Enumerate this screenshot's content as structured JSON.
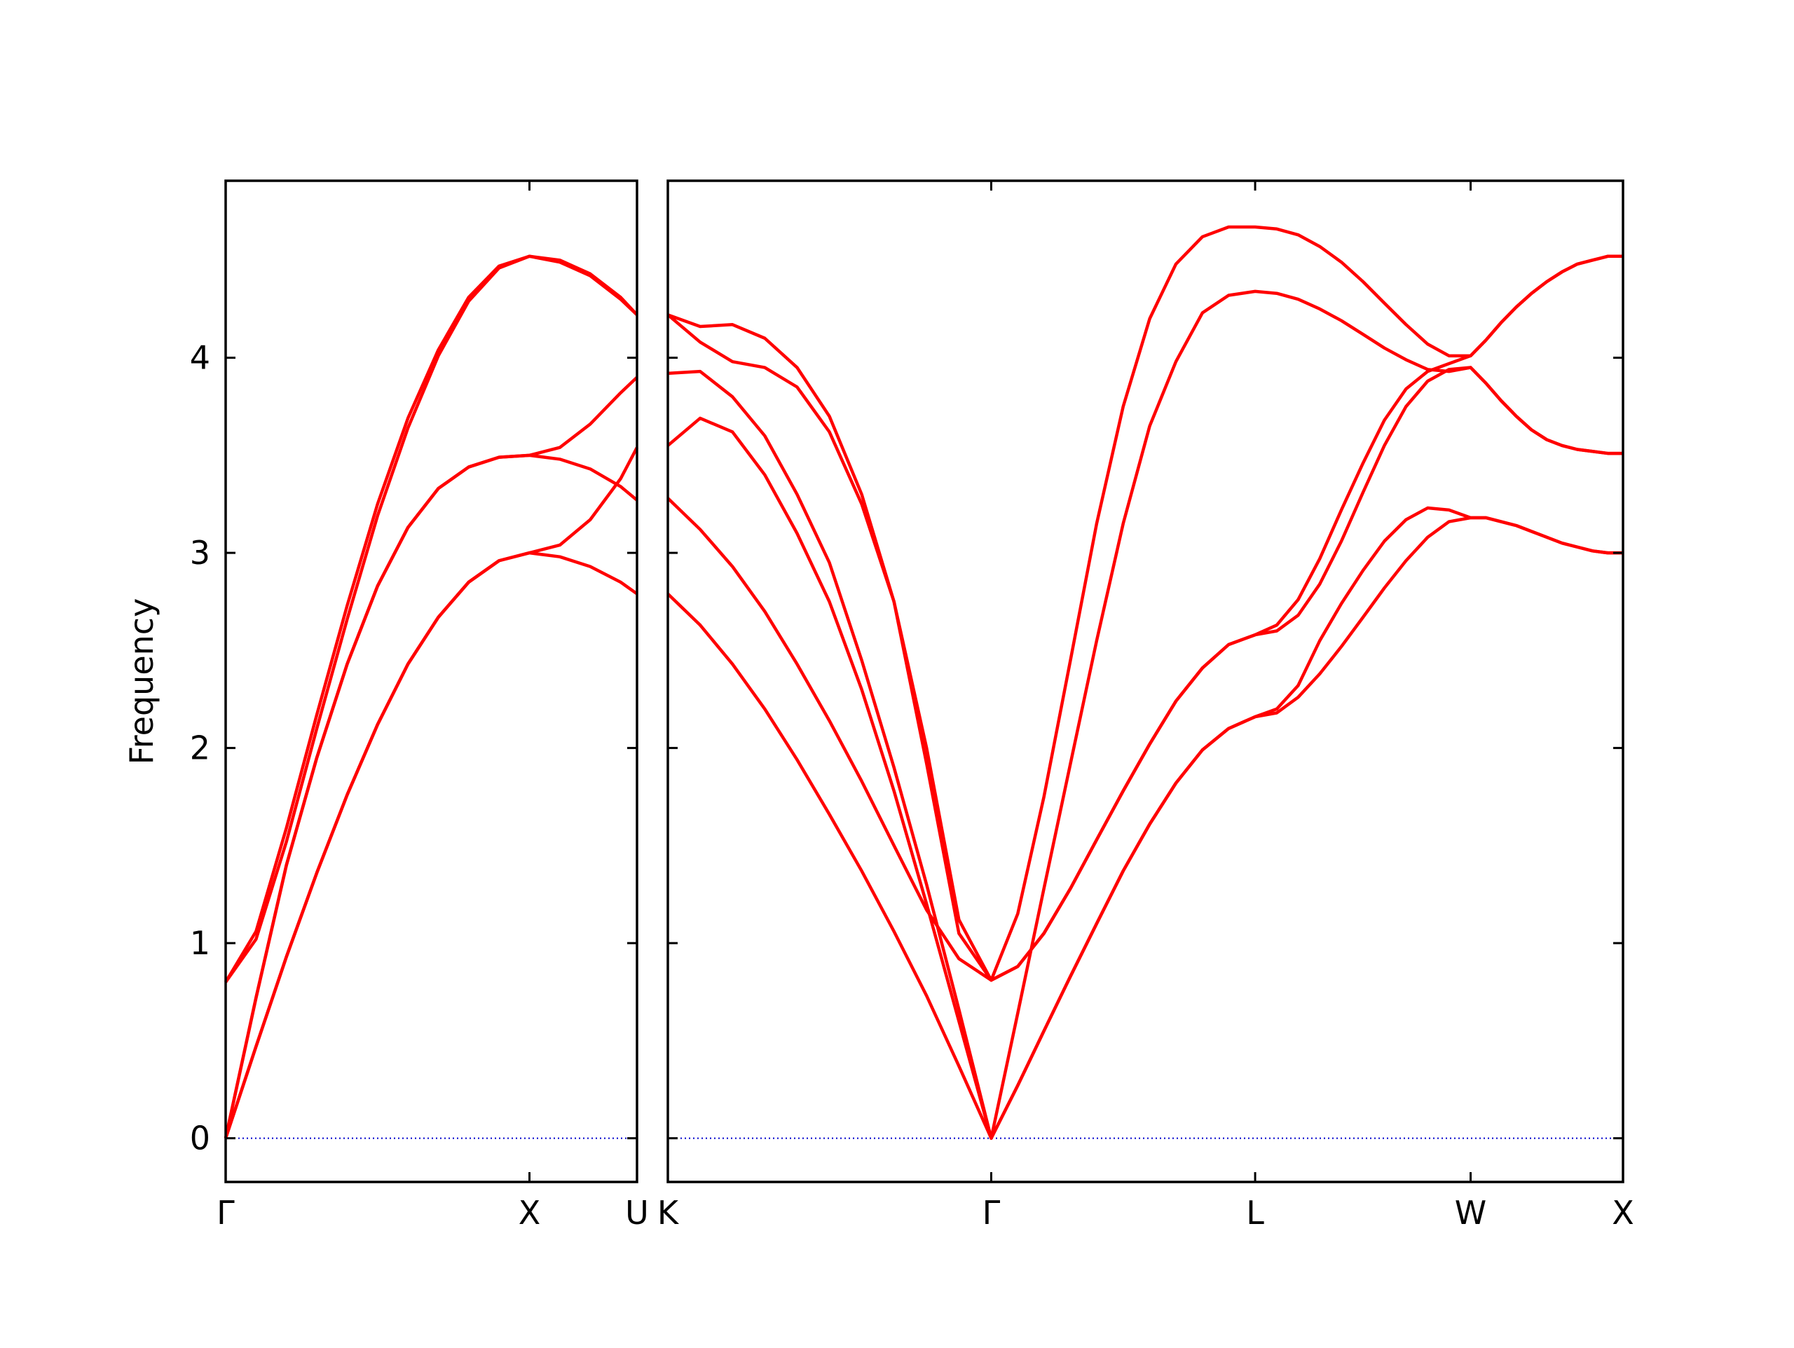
{
  "chart_data": [
    {
      "type": "line",
      "ylabel": "Frequency",
      "color": "#ff0000",
      "show_ytick_labels": true,
      "x": [
        0,
        0.1,
        0.2,
        0.3,
        0.4,
        0.5,
        0.6,
        0.7,
        0.8,
        0.9,
        1.0,
        1.1,
        1.2,
        1.3,
        1.354
      ],
      "xlim": [
        0,
        1.354
      ],
      "xticks": [
        {
          "value": 0,
          "label": "Γ"
        },
        {
          "value": 1.0,
          "label": "X"
        },
        {
          "value": 1.354,
          "label": "U"
        }
      ],
      "ylim": [
        -0.224,
        4.907
      ],
      "yticks": [
        0,
        1,
        2,
        3,
        4
      ],
      "baseline": {
        "value": 0,
        "color": "#0000cc"
      },
      "series": [
        {
          "values": [
            0,
            0.47,
            0.93,
            1.36,
            1.76,
            2.12,
            2.43,
            2.67,
            2.85,
            2.96,
            3.0,
            3.04,
            3.17,
            3.38,
            3.54
          ]
        },
        {
          "values": [
            0,
            0.47,
            0.93,
            1.36,
            1.76,
            2.12,
            2.43,
            2.67,
            2.85,
            2.96,
            3.0,
            2.98,
            2.93,
            2.85,
            2.79
          ]
        },
        {
          "values": [
            0,
            0.72,
            1.4,
            1.95,
            2.43,
            2.83,
            3.13,
            3.33,
            3.44,
            3.49,
            3.5,
            3.54,
            3.66,
            3.82,
            3.9
          ]
        },
        {
          "values": [
            0.8,
            1.06,
            1.59,
            2.17,
            2.73,
            3.25,
            3.69,
            4.04,
            4.31,
            4.47,
            4.52,
            4.5,
            4.43,
            4.31,
            4.22
          ]
        },
        {
          "values": [
            0.8,
            1.02,
            1.52,
            2.1,
            2.66,
            3.19,
            3.64,
            4.01,
            4.29,
            4.46,
            4.52,
            4.49,
            4.42,
            4.3,
            4.22
          ]
        },
        {
          "values": [
            0,
            0.72,
            1.4,
            1.95,
            2.43,
            2.83,
            3.13,
            3.33,
            3.44,
            3.49,
            3.5,
            3.48,
            3.43,
            3.34,
            3.27
          ]
        }
      ]
    },
    {
      "type": "line",
      "color": "#ff0000",
      "show_ytick_labels": false,
      "x": [
        1.354,
        1.46,
        1.566,
        1.672,
        1.778,
        1.884,
        1.99,
        2.096,
        2.203,
        2.309,
        2.415,
        2.502,
        2.588,
        2.675,
        2.761,
        2.848,
        2.935,
        3.021,
        3.108,
        3.194,
        3.281,
        3.352,
        3.422,
        3.493,
        3.564,
        3.635,
        3.705,
        3.776,
        3.847,
        3.917,
        3.988,
        4.038,
        4.088,
        4.138,
        4.188,
        4.238,
        4.288,
        4.338,
        4.388,
        4.438,
        4.488
      ],
      "xlim": [
        1.354,
        4.488
      ],
      "xticks": [
        {
          "value": 1.354,
          "label": "K"
        },
        {
          "value": 2.415,
          "label": "Γ"
        },
        {
          "value": 3.281,
          "label": "L"
        },
        {
          "value": 3.988,
          "label": "W"
        },
        {
          "value": 4.488,
          "label": "X"
        }
      ],
      "ylim": [
        -0.224,
        4.907
      ],
      "yticks": [
        0,
        1,
        2,
        3,
        4
      ],
      "baseline": {
        "value": 0,
        "color": "#0000cc"
      },
      "series": [
        {
          "values": [
            4.22,
            4.16,
            4.17,
            4.1,
            3.95,
            3.7,
            3.3,
            2.75,
            1.92,
            1.05,
            0.81,
            1.15,
            1.75,
            2.45,
            3.15,
            3.75,
            4.2,
            4.48,
            4.62,
            4.67,
            4.67,
            4.66,
            4.63,
            4.57,
            4.49,
            4.39,
            4.28,
            4.17,
            4.07,
            4.01,
            4.01,
            4.09,
            4.18,
            4.26,
            4.33,
            4.39,
            4.44,
            4.48,
            4.5,
            4.52,
            4.52
          ]
        },
        {
          "values": [
            4.22,
            4.08,
            3.98,
            3.95,
            3.85,
            3.62,
            3.25,
            2.75,
            2.0,
            1.12,
            0.81,
            0.88,
            1.05,
            1.28,
            1.53,
            1.78,
            2.02,
            2.24,
            2.41,
            2.53,
            2.58,
            2.63,
            2.76,
            2.97,
            3.22,
            3.46,
            3.68,
            3.84,
            3.93,
            3.97,
            4.01,
            4.09,
            4.18,
            4.26,
            4.33,
            4.39,
            4.44,
            4.48,
            4.5,
            4.52,
            4.52
          ]
        },
        {
          "values": [
            3.92,
            3.93,
            3.8,
            3.6,
            3.3,
            2.95,
            2.45,
            1.9,
            1.3,
            0.66,
            0,
            0.27,
            0.55,
            0.83,
            1.1,
            1.37,
            1.61,
            1.82,
            1.99,
            2.1,
            2.16,
            2.2,
            2.32,
            2.55,
            2.74,
            2.91,
            3.06,
            3.17,
            3.23,
            3.22,
            3.18,
            3.18,
            3.16,
            3.14,
            3.11,
            3.08,
            3.05,
            3.03,
            3.01,
            3.0,
            3.0
          ]
        },
        {
          "values": [
            3.55,
            3.69,
            3.62,
            3.4,
            3.1,
            2.75,
            2.3,
            1.78,
            1.2,
            0.6,
            0,
            0.27,
            0.55,
            0.83,
            1.1,
            1.37,
            1.61,
            1.82,
            1.99,
            2.1,
            2.16,
            2.18,
            2.26,
            2.38,
            2.52,
            2.67,
            2.82,
            2.96,
            3.08,
            3.16,
            3.18,
            3.18,
            3.16,
            3.14,
            3.11,
            3.08,
            3.05,
            3.03,
            3.01,
            3.0,
            3.0
          ]
        },
        {
          "values": [
            3.28,
            3.12,
            2.93,
            2.7,
            2.43,
            2.14,
            1.83,
            1.5,
            1.17,
            0.92,
            0.81,
            0.88,
            1.05,
            1.28,
            1.53,
            1.78,
            2.02,
            2.24,
            2.41,
            2.53,
            2.58,
            2.6,
            2.68,
            2.84,
            3.06,
            3.31,
            3.55,
            3.75,
            3.88,
            3.94,
            3.95,
            3.87,
            3.78,
            3.7,
            3.63,
            3.58,
            3.55,
            3.53,
            3.52,
            3.51,
            3.51
          ]
        },
        {
          "values": [
            2.79,
            2.63,
            2.43,
            2.2,
            1.94,
            1.66,
            1.37,
            1.06,
            0.73,
            0.37,
            0,
            0.64,
            1.28,
            1.92,
            2.55,
            3.15,
            3.65,
            3.98,
            4.23,
            4.32,
            4.34,
            4.33,
            4.3,
            4.25,
            4.19,
            4.12,
            4.05,
            3.99,
            3.94,
            3.93,
            3.95,
            3.87,
            3.78,
            3.7,
            3.63,
            3.58,
            3.55,
            3.53,
            3.52,
            3.51,
            3.51
          ]
        }
      ]
    }
  ]
}
